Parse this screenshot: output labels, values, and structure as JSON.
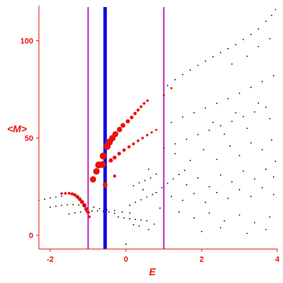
{
  "chart_data": {
    "type": "scatter",
    "xlabel": "E",
    "ylabel": "<M>",
    "xlim": [
      -2.3,
      4.0
    ],
    "ylim": [
      -7,
      118
    ],
    "x_ticks": [
      -2,
      0,
      2,
      4
    ],
    "y_ticks": [
      0,
      50,
      100
    ],
    "x_tick_labels": [
      "-2",
      "0",
      "2",
      "4"
    ],
    "y_tick_labels": [
      "0",
      "50",
      "100"
    ],
    "grid": false,
    "legend": "none",
    "colors": {
      "axis": "#e8120c",
      "background_points": "#000000",
      "highlight_points": "#e8120c",
      "bold_line": "#1010e0",
      "thin_lines": "#c020c0"
    },
    "vertical_lines": [
      {
        "x": -1.0,
        "color": "#c020c0",
        "style": "thin"
      },
      {
        "x": -0.55,
        "color": "#1010e0",
        "style": "bold"
      },
      {
        "x": 1.0,
        "color": "#c020c0",
        "style": "thin"
      }
    ],
    "series": [
      {
        "role": "highlighted",
        "marker": "red circles, size varies",
        "points": [
          {
            "x": -1.7,
            "y": 21.5,
            "s": 1.8
          },
          {
            "x": -1.6,
            "y": 21.6,
            "s": 1.9
          },
          {
            "x": -1.5,
            "y": 21.6,
            "s": 2.0
          },
          {
            "x": -1.42,
            "y": 21.3,
            "s": 2.2
          },
          {
            "x": -1.35,
            "y": 20.8,
            "s": 2.4
          },
          {
            "x": -1.28,
            "y": 19.8,
            "s": 2.6
          },
          {
            "x": -1.22,
            "y": 18.6,
            "s": 2.7
          },
          {
            "x": -1.16,
            "y": 17.2,
            "s": 2.9
          },
          {
            "x": -1.1,
            "y": 15.5,
            "s": 3.0
          },
          {
            "x": -1.05,
            "y": 13.6,
            "s": 2.8
          },
          {
            "x": -1.0,
            "y": 11.8,
            "s": 2.4
          },
          {
            "x": -0.97,
            "y": 9.6,
            "s": 2.0
          },
          {
            "x": -0.55,
            "y": 26.2,
            "s": 3.2
          },
          {
            "x": -0.55,
            "y": 25.5,
            "s": 3.0
          },
          {
            "x": -0.87,
            "y": 28.8,
            "s": 4.4
          },
          {
            "x": -0.78,
            "y": 32.9,
            "s": 4.6
          },
          {
            "x": -0.72,
            "y": 36.2,
            "s": 5.0
          },
          {
            "x": -0.62,
            "y": 36.4,
            "s": 4.8
          },
          {
            "x": -0.6,
            "y": 40.8,
            "s": 5.0
          },
          {
            "x": -0.5,
            "y": 45.8,
            "s": 5.2
          },
          {
            "x": -0.44,
            "y": 47.9,
            "s": 5.0
          },
          {
            "x": -0.36,
            "y": 49.9,
            "s": 4.6
          },
          {
            "x": -0.28,
            "y": 52.0,
            "s": 4.2
          },
          {
            "x": -0.17,
            "y": 54.4,
            "s": 3.8
          },
          {
            "x": -0.08,
            "y": 56.5,
            "s": 3.4
          },
          {
            "x": 0.05,
            "y": 58.6,
            "s": 3.0
          },
          {
            "x": 0.15,
            "y": 60.6,
            "s": 2.6
          },
          {
            "x": 0.24,
            "y": 62.6,
            "s": 2.4
          },
          {
            "x": 0.32,
            "y": 64.4,
            "s": 2.2
          },
          {
            "x": 0.4,
            "y": 66.1,
            "s": 2.0
          },
          {
            "x": 0.48,
            "y": 67.8,
            "s": 1.9
          },
          {
            "x": 0.57,
            "y": 69.2,
            "s": 1.8
          },
          {
            "x": -0.4,
            "y": 38.5,
            "s": 3.0
          },
          {
            "x": -0.3,
            "y": 40.0,
            "s": 2.8
          },
          {
            "x": -0.18,
            "y": 42.0,
            "s": 2.6
          },
          {
            "x": -0.05,
            "y": 43.8,
            "s": 2.4
          },
          {
            "x": 0.08,
            "y": 45.5,
            "s": 2.2
          },
          {
            "x": 0.2,
            "y": 47.0,
            "s": 2.0
          },
          {
            "x": 0.32,
            "y": 48.6,
            "s": 1.9
          },
          {
            "x": 0.44,
            "y": 50.0,
            "s": 1.8
          },
          {
            "x": 0.56,
            "y": 51.5,
            "s": 1.7
          },
          {
            "x": 0.68,
            "y": 52.9,
            "s": 1.6
          },
          {
            "x": 0.8,
            "y": 54.2,
            "s": 1.5
          },
          {
            "x": -0.3,
            "y": 30.5,
            "s": 2.2
          },
          {
            "x": 1.0,
            "y": 72.0,
            "s": 1.5
          },
          {
            "x": 1.2,
            "y": 75.6,
            "s": 1.5
          }
        ]
      },
      {
        "role": "background",
        "marker": "small black dots",
        "points": [
          {
            "x": -2.3,
            "y": 18.0
          },
          {
            "x": -2.15,
            "y": 18.6
          },
          {
            "x": -2.0,
            "y": 19.2
          },
          {
            "x": -1.85,
            "y": 19.7
          },
          {
            "x": -1.7,
            "y": 20.1
          },
          {
            "x": -2.0,
            "y": 14.5
          },
          {
            "x": -1.85,
            "y": 15.0
          },
          {
            "x": -1.7,
            "y": 15.4
          },
          {
            "x": -1.55,
            "y": 15.7
          },
          {
            "x": -1.4,
            "y": 15.8
          },
          {
            "x": -1.25,
            "y": 15.6
          },
          {
            "x": -1.1,
            "y": 15.0
          },
          {
            "x": -1.5,
            "y": 11.0
          },
          {
            "x": -1.35,
            "y": 11.6
          },
          {
            "x": -1.2,
            "y": 12.0
          },
          {
            "x": -1.05,
            "y": 12.3
          },
          {
            "x": -0.9,
            "y": 12.5
          },
          {
            "x": -0.75,
            "y": 12.6
          },
          {
            "x": -0.6,
            "y": 12.4
          },
          {
            "x": -0.45,
            "y": 12.0
          },
          {
            "x": -0.3,
            "y": 11.4
          },
          {
            "x": -0.85,
            "y": 14.5
          },
          {
            "x": -0.7,
            "y": 13.8
          },
          {
            "x": -0.5,
            "y": 13.2
          },
          {
            "x": -0.3,
            "y": 12.8
          },
          {
            "x": -0.1,
            "y": 12.0
          },
          {
            "x": 0.1,
            "y": 11.5
          },
          {
            "x": -0.2,
            "y": 9.5
          },
          {
            "x": -0.05,
            "y": 9.0
          },
          {
            "x": 0.1,
            "y": 8.6
          },
          {
            "x": 0.25,
            "y": 8.2
          },
          {
            "x": 0.4,
            "y": 7.9
          },
          {
            "x": 0.55,
            "y": 7.5
          },
          {
            "x": 0.0,
            "y": -4.5
          },
          {
            "x": 0.2,
            "y": 5.5
          },
          {
            "x": 0.35,
            "y": 4.8
          },
          {
            "x": 0.6,
            "y": 3.0
          },
          {
            "x": 0.75,
            "y": 5.8
          },
          {
            "x": 1.1,
            "y": 77.0
          },
          {
            "x": 1.3,
            "y": 80.0
          },
          {
            "x": 1.5,
            "y": 82.6
          },
          {
            "x": 1.7,
            "y": 85.0
          },
          {
            "x": 1.9,
            "y": 87.3
          },
          {
            "x": 2.1,
            "y": 89.5
          },
          {
            "x": 2.3,
            "y": 91.8
          },
          {
            "x": 2.5,
            "y": 93.9
          },
          {
            "x": 2.7,
            "y": 95.9
          },
          {
            "x": 2.9,
            "y": 98.0
          },
          {
            "x": 3.1,
            "y": 100.6
          },
          {
            "x": 3.3,
            "y": 103.2
          },
          {
            "x": 3.5,
            "y": 106.0
          },
          {
            "x": 3.7,
            "y": 110.0
          },
          {
            "x": 3.85,
            "y": 113.0
          },
          {
            "x": 3.95,
            "y": 116.0
          },
          {
            "x": 1.2,
            "y": 58.0
          },
          {
            "x": 1.5,
            "y": 60.8
          },
          {
            "x": 1.8,
            "y": 63.0
          },
          {
            "x": 2.1,
            "y": 65.4
          },
          {
            "x": 2.4,
            "y": 67.8
          },
          {
            "x": 2.7,
            "y": 70.2
          },
          {
            "x": 3.0,
            "y": 73.0
          },
          {
            "x": 3.3,
            "y": 76.0
          },
          {
            "x": 3.6,
            "y": 79.0
          },
          {
            "x": 3.9,
            "y": 82.0
          },
          {
            "x": 1.0,
            "y": 45.0
          },
          {
            "x": 1.3,
            "y": 47.0
          },
          {
            "x": 1.6,
            "y": 49.4
          },
          {
            "x": 1.9,
            "y": 51.8
          },
          {
            "x": 2.2,
            "y": 54.0
          },
          {
            "x": 2.5,
            "y": 56.3
          },
          {
            "x": 2.8,
            "y": 58.6
          },
          {
            "x": 3.1,
            "y": 61.0
          },
          {
            "x": 3.4,
            "y": 63.4
          },
          {
            "x": 3.7,
            "y": 65.8
          },
          {
            "x": 0.8,
            "y": 22.0
          },
          {
            "x": 0.95,
            "y": 24.5
          },
          {
            "x": 1.1,
            "y": 26.8
          },
          {
            "x": 1.25,
            "y": 29.0
          },
          {
            "x": 1.4,
            "y": 31.3
          },
          {
            "x": 1.55,
            "y": 33.4
          },
          {
            "x": 0.1,
            "y": 15.5
          },
          {
            "x": 0.25,
            "y": 17.0
          },
          {
            "x": 0.4,
            "y": 18.3
          },
          {
            "x": 0.55,
            "y": 19.7
          },
          {
            "x": 0.7,
            "y": 21.0
          },
          {
            "x": 0.2,
            "y": 25.5
          },
          {
            "x": 0.35,
            "y": 27.0
          },
          {
            "x": 0.5,
            "y": 28.2
          },
          {
            "x": 0.65,
            "y": 29.5
          },
          {
            "x": 1.3,
            "y": 42.0
          },
          {
            "x": 1.7,
            "y": 38.5
          },
          {
            "x": 2.05,
            "y": 44.0
          },
          {
            "x": 2.4,
            "y": 39.0
          },
          {
            "x": 2.75,
            "y": 46.0
          },
          {
            "x": 3.0,
            "y": 41.0
          },
          {
            "x": 3.3,
            "y": 47.5
          },
          {
            "x": 3.6,
            "y": 44.0
          },
          {
            "x": 3.85,
            "y": 49.0
          },
          {
            "x": 3.95,
            "y": 38.0
          },
          {
            "x": 1.6,
            "y": 26.0
          },
          {
            "x": 1.9,
            "y": 29.5
          },
          {
            "x": 2.2,
            "y": 25.0
          },
          {
            "x": 2.5,
            "y": 31.0
          },
          {
            "x": 2.8,
            "y": 27.5
          },
          {
            "x": 3.1,
            "y": 33.0
          },
          {
            "x": 3.4,
            "y": 29.0
          },
          {
            "x": 3.7,
            "y": 34.0
          },
          {
            "x": 3.9,
            "y": 30.0
          },
          {
            "x": 1.2,
            "y": 20.0
          },
          {
            "x": 1.5,
            "y": 18.0
          },
          {
            "x": 1.8,
            "y": 21.5
          },
          {
            "x": 2.1,
            "y": 17.0
          },
          {
            "x": 2.4,
            "y": 22.0
          },
          {
            "x": 2.7,
            "y": 19.0
          },
          {
            "x": 3.0,
            "y": 23.5
          },
          {
            "x": 3.3,
            "y": 20.0
          },
          {
            "x": 3.6,
            "y": 24.5
          },
          {
            "x": 3.9,
            "y": 21.0
          },
          {
            "x": 1.4,
            "y": 12.0
          },
          {
            "x": 1.8,
            "y": 9.0
          },
          {
            "x": 2.2,
            "y": 11.5
          },
          {
            "x": 2.6,
            "y": 7.5
          },
          {
            "x": 3.0,
            "y": 10.5
          },
          {
            "x": 3.4,
            "y": 6.5
          },
          {
            "x": 3.8,
            "y": 9.5
          },
          {
            "x": 2.0,
            "y": 2.0
          },
          {
            "x": 2.5,
            "y": 4.0
          },
          {
            "x": 3.2,
            "y": 1.0
          },
          {
            "x": 3.7,
            "y": 3.0
          },
          {
            "x": 2.3,
            "y": 58.0
          },
          {
            "x": 2.6,
            "y": 52.0
          },
          {
            "x": 2.9,
            "y": 63.0
          },
          {
            "x": 3.2,
            "y": 55.0
          },
          {
            "x": 3.5,
            "y": 68.0
          },
          {
            "x": 3.8,
            "y": 60.0
          },
          {
            "x": 2.8,
            "y": 88.0
          },
          {
            "x": 3.2,
            "y": 92.0
          },
          {
            "x": 3.5,
            "y": 97.0
          },
          {
            "x": 3.8,
            "y": 101.0
          },
          {
            "x": 0.6,
            "y": 34.0
          },
          {
            "x": 0.8,
            "y": 31.5
          },
          {
            "x": 0.45,
            "y": 23.5
          },
          {
            "x": 0.9,
            "y": 14.0
          }
        ]
      }
    ]
  }
}
